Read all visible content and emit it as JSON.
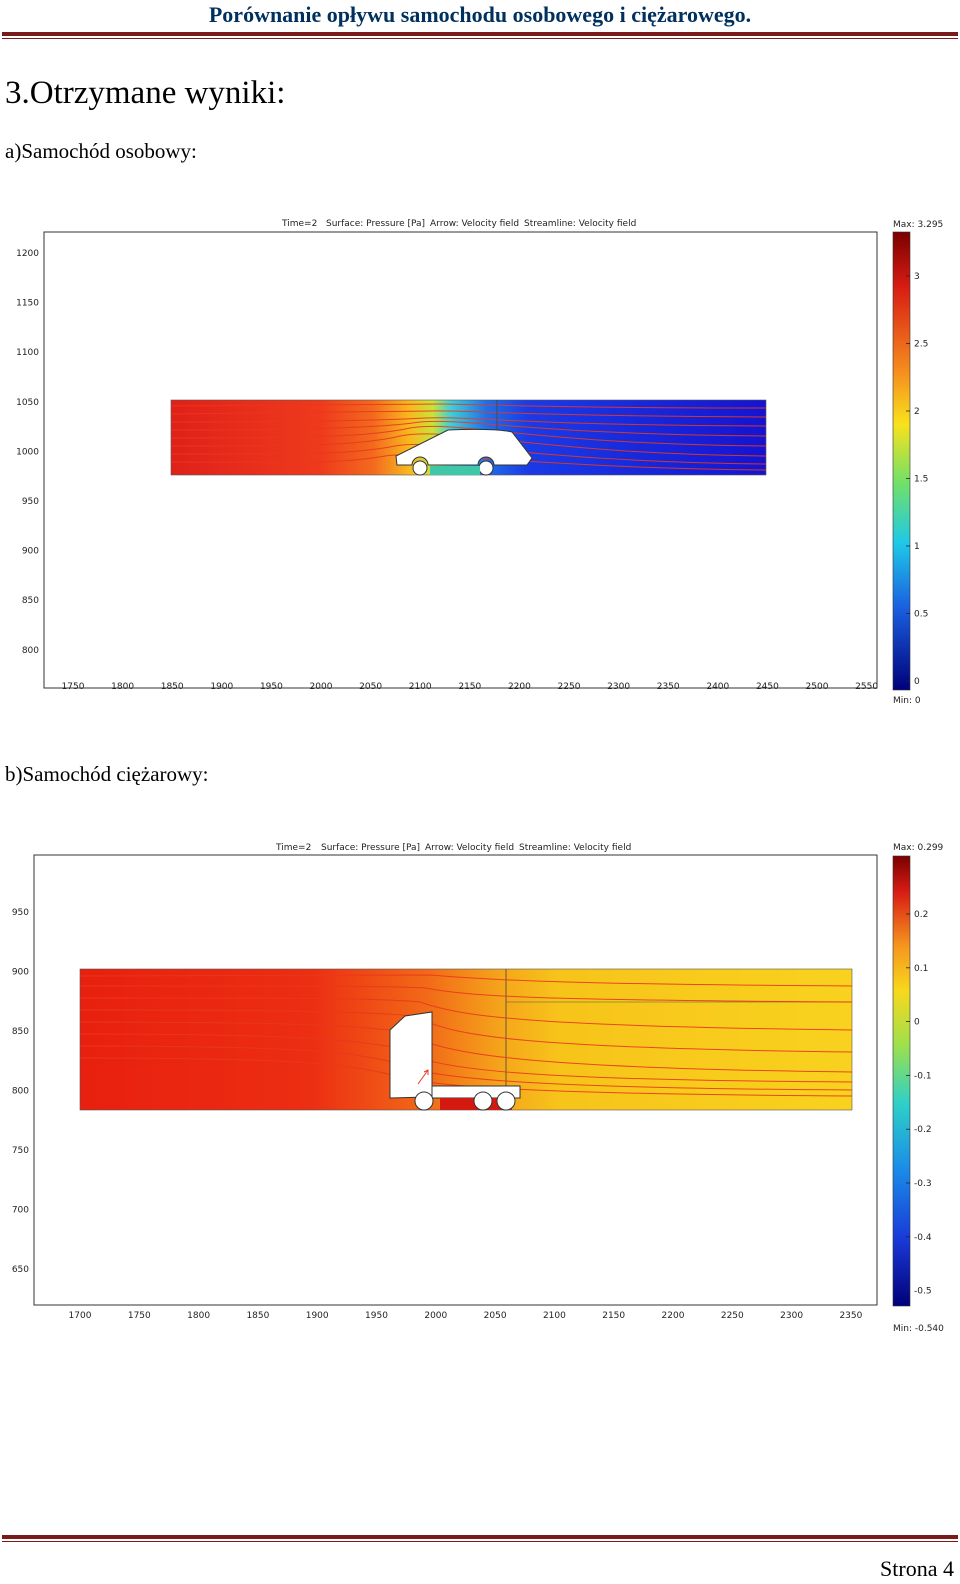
{
  "header": {
    "title": "Porównanie opływu samochodu osobowego i ciężarowego."
  },
  "section": {
    "title": "3.Otrzymane wyniki:"
  },
  "figures": [
    {
      "caption": "a)Samochód osobowy:",
      "title_parts": [
        "Time=2",
        "Surface: Pressure [Pa]",
        "Arrow: Velocity field",
        "Streamline: Velocity field"
      ],
      "x_ticks": [
        "1750",
        "1800",
        "1850",
        "1900",
        "1950",
        "2000",
        "2050",
        "2100",
        "2150",
        "2200",
        "2250",
        "2300",
        "2350",
        "2400",
        "2450",
        "2500",
        "2550"
      ],
      "y_ticks": [
        "1200",
        "1150",
        "1100",
        "1050",
        "1000",
        "950",
        "900",
        "850",
        "800"
      ],
      "colorbar": {
        "max_label": "Max: 3.295",
        "min_label": "Min: 0",
        "ticks": [
          "3",
          "2.5",
          "2",
          "1.5",
          "1",
          "0.5",
          "0"
        ]
      },
      "colors": {
        "high": "#d7191c",
        "mid": "#2ec4a5",
        "low": "#1a1ae0",
        "streamline": "#e8391d"
      }
    },
    {
      "caption": "b)Samochód ciężarowy:",
      "title_parts": [
        "Time=2",
        "Surface: Pressure [Pa]",
        "Arrow: Velocity field",
        "Streamline: Velocity field"
      ],
      "x_ticks": [
        "1700",
        "1750",
        "1800",
        "1850",
        "1900",
        "1950",
        "2000",
        "2050",
        "2100",
        "2150",
        "2200",
        "2250",
        "2300",
        "2350"
      ],
      "y_ticks": [
        "950",
        "900",
        "850",
        "800",
        "750",
        "700",
        "650"
      ],
      "colorbar": {
        "max_label": "Max: 0.299",
        "min_label": "Min: -0.540",
        "ticks": [
          "0.2",
          "0.1",
          "0",
          "-0.1",
          "-0.2",
          "-0.3",
          "-0.4",
          "-0.5"
        ]
      },
      "colors": {
        "high": "#ee2a17",
        "mid": "#f7c41a",
        "low": "#0a1a8c",
        "streamline": "#e8391d"
      }
    }
  ],
  "footer": {
    "page_label": "Strona 4"
  }
}
